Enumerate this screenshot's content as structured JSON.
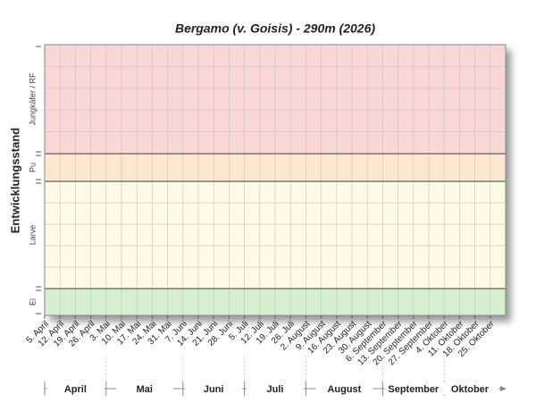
{
  "chart_data": {
    "type": "band",
    "title": "Bergamo (v. Goisis) - 290m (2026)",
    "y_label": "Entwicklungsstand",
    "bands": [
      {
        "name": "Jungkäfer / RF",
        "color": "#fad6d6"
      },
      {
        "name": "Pu",
        "color": "#fde8cf"
      },
      {
        "name": "Larve",
        "color": "#fcfce6"
      },
      {
        "name": "Ei",
        "color": "#d6efcf"
      }
    ],
    "categories": [
      "5. April",
      "12. April",
      "19. April",
      "26. April",
      "3. Mai",
      "10. Mai",
      "17. Mai",
      "24. Mai",
      "31. Mai",
      "7. Juni",
      "14. Juni",
      "21. Juni",
      "28. Juni",
      "5. Juli",
      "12. Juli",
      "19. Juli",
      "26. Juli",
      "2. August",
      "9. August",
      "16. August",
      "23. August",
      "30. August",
      "6. September",
      "13. September",
      "20. September",
      "27. September",
      "4. Oktober",
      "11. Oktober",
      "18. Oktober",
      "25. Oktober"
    ],
    "months": [
      "April",
      "Mai",
      "Juni",
      "Juli",
      "August",
      "September",
      "Oktober"
    ],
    "grid": true
  }
}
